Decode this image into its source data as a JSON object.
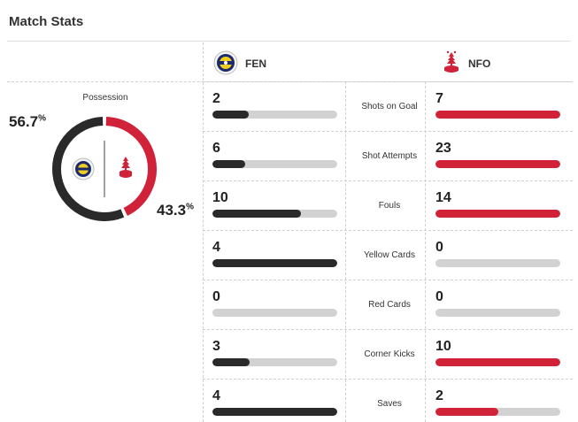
{
  "header": {
    "title": "Match Stats"
  },
  "teams": {
    "home": {
      "abbr": "FEN",
      "color": "#2a2a2a",
      "icon": "fenerbahce-crest-icon"
    },
    "away": {
      "abbr": "NFO",
      "color": "#d0233a",
      "icon": "nottingham-forest-crest-icon"
    }
  },
  "possession": {
    "title": "Possession",
    "home_pct": 56.7,
    "away_pct": 43.3,
    "home_label": "56.7",
    "away_label": "43.3",
    "pct_sign": "%"
  },
  "stats": [
    {
      "label": "Shots on Goal",
      "home": "2",
      "away": "7",
      "home_ratio": 0.29,
      "away_ratio": 1.0
    },
    {
      "label": "Shot Attempts",
      "home": "6",
      "away": "23",
      "home_ratio": 0.26,
      "away_ratio": 1.0
    },
    {
      "label": "Fouls",
      "home": "10",
      "away": "14",
      "home_ratio": 0.71,
      "away_ratio": 1.0
    },
    {
      "label": "Yellow Cards",
      "home": "4",
      "away": "0",
      "home_ratio": 1.0,
      "away_ratio": 0.0
    },
    {
      "label": "Red Cards",
      "home": "0",
      "away": "0",
      "home_ratio": 0.0,
      "away_ratio": 0.0
    },
    {
      "label": "Corner Kicks",
      "home": "3",
      "away": "10",
      "home_ratio": 0.3,
      "away_ratio": 1.0
    },
    {
      "label": "Saves",
      "home": "4",
      "away": "2",
      "home_ratio": 1.0,
      "away_ratio": 0.5
    }
  ]
}
